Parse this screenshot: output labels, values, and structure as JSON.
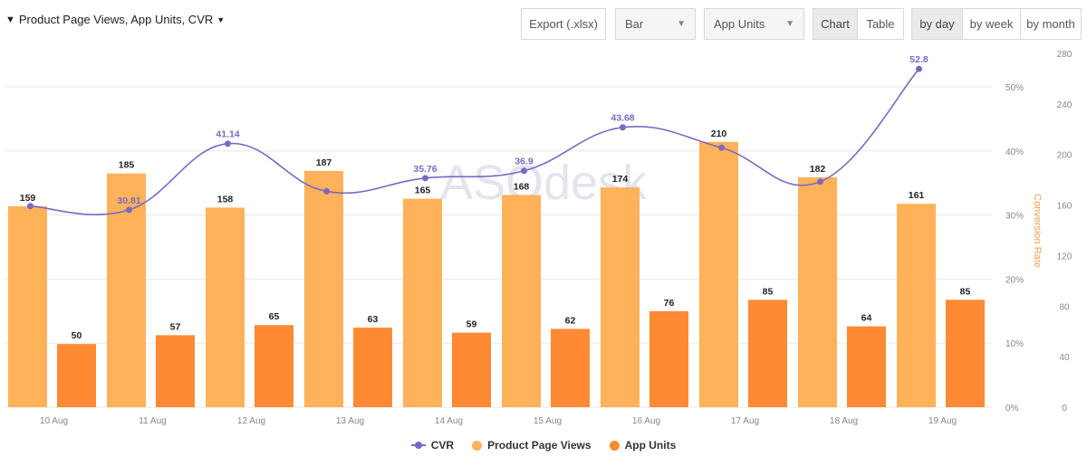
{
  "filter": {
    "icon": "funnel-icon",
    "label": "Product Page Views, App Units, CVR"
  },
  "toolbar": {
    "export_label": "Export (.xlsx)",
    "chart_type_value": "Bar",
    "metric_value": "App Units",
    "view_chart": "Chart",
    "view_table": "Table",
    "by_day": "by day",
    "by_week": "by week",
    "by_month": "by month"
  },
  "watermark": "ASOdesk",
  "colors": {
    "cvr": "#7b68c4",
    "views": "#ffb25a",
    "units": "#ff8a33",
    "right_axis_label": "#f0a050",
    "grid": "#e8e8e8",
    "axis_text": "#888888"
  },
  "chart_data": {
    "type": "bar",
    "categories": [
      "10 Aug",
      "11 Aug",
      "12 Aug",
      "13 Aug",
      "14 Aug",
      "15 Aug",
      "16 Aug",
      "17 Aug",
      "18 Aug",
      "19 Aug"
    ],
    "series": [
      {
        "name": "Product Page Views",
        "type": "bar",
        "axis": "right",
        "values": [
          159,
          185,
          158,
          187,
          165,
          168,
          174,
          210,
          182,
          161
        ]
      },
      {
        "name": "App Units",
        "type": "bar",
        "axis": "right",
        "values": [
          50,
          57,
          65,
          63,
          59,
          62,
          76,
          85,
          64,
          85
        ]
      },
      {
        "name": "CVR",
        "type": "line",
        "axis": "left",
        "values": [
          31.4,
          30.81,
          41.14,
          33.7,
          35.76,
          36.9,
          43.68,
          40.5,
          35.2,
          52.8
        ],
        "labeled": [
          false,
          true,
          true,
          false,
          true,
          true,
          true,
          false,
          false,
          true
        ]
      }
    ],
    "left_axis": {
      "ticks": [
        "0%",
        "10%",
        "20%",
        "30%",
        "40%",
        "50%"
      ],
      "ylim": [
        0,
        50
      ]
    },
    "right_axis": {
      "label": "Conversion Rate",
      "ticks": [
        "0",
        "40",
        "80",
        "120",
        "160",
        "200",
        "240",
        "280"
      ],
      "ylim": [
        0,
        280
      ]
    },
    "grid": true,
    "legend_position": "bottom"
  }
}
